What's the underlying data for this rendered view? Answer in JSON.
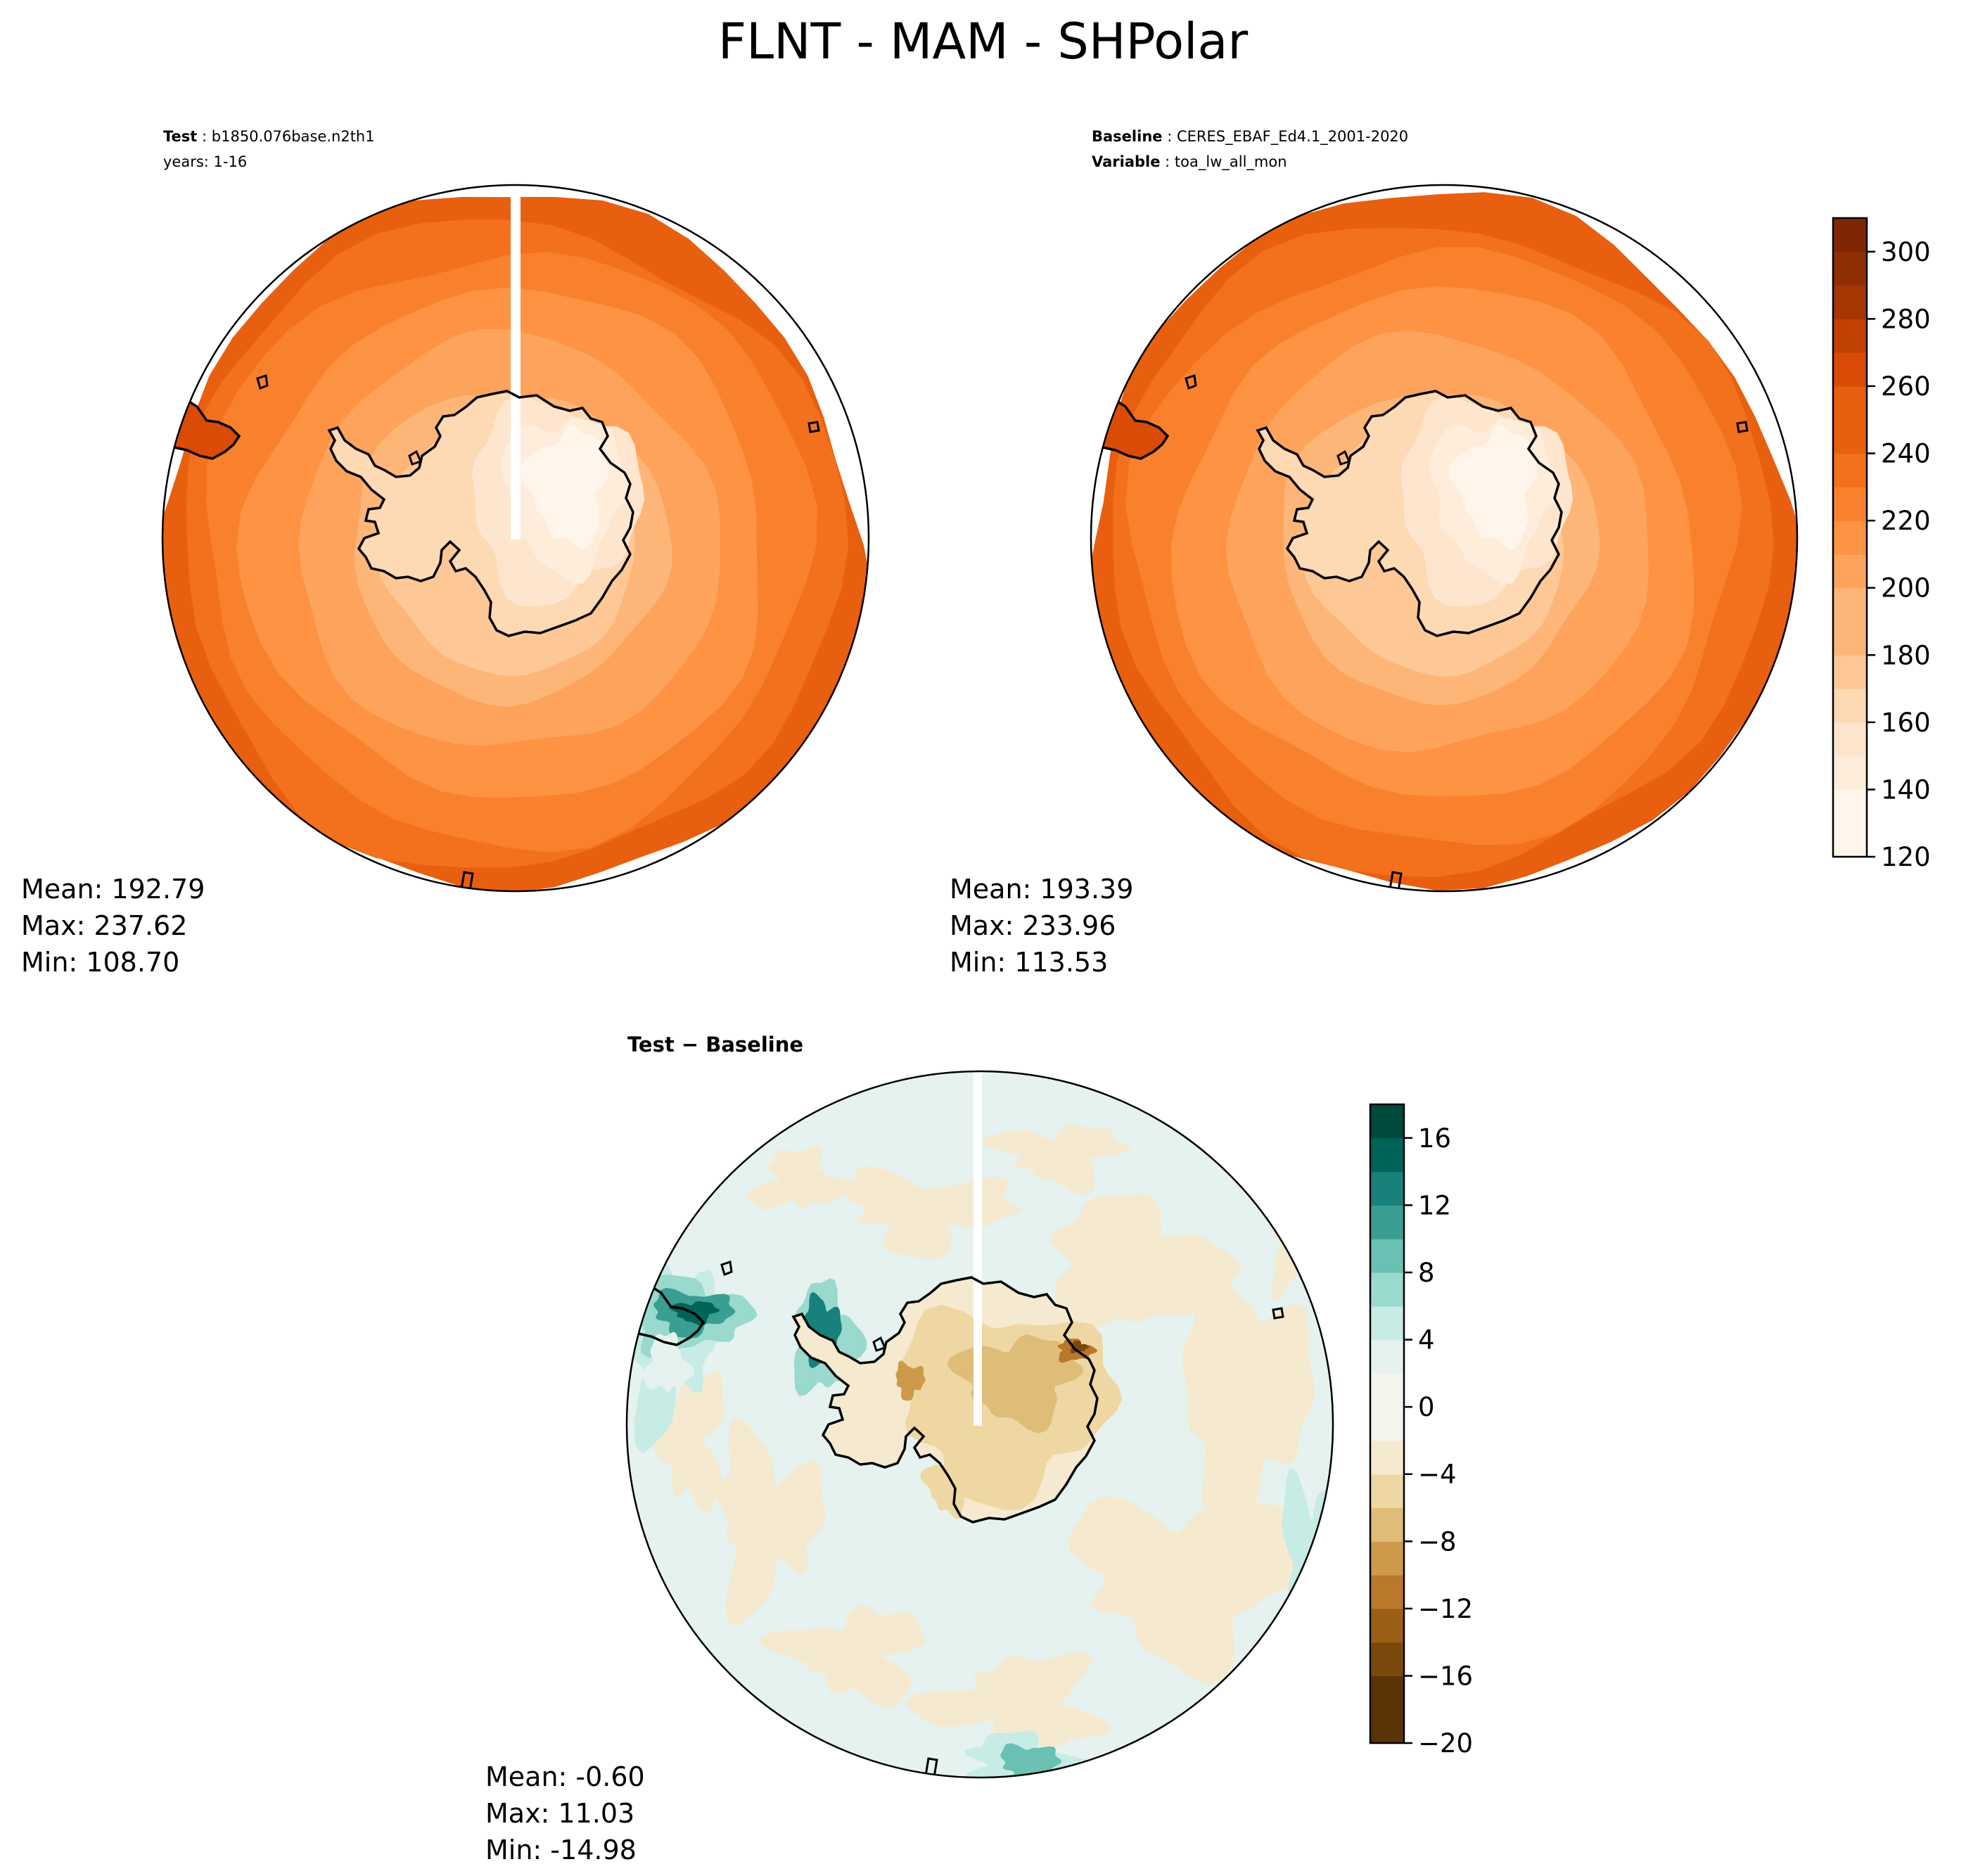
{
  "title": "FLNT - MAM - SHPolar",
  "panels": {
    "test": {
      "label_key": "Test",
      "label_value": "b1850.076base.n2th1",
      "years": "years: 1-16",
      "stats": {
        "mean": "Mean: 192.79",
        "max": "Max: 237.62",
        "min": "Min: 108.70"
      }
    },
    "baseline": {
      "label_key": "Baseline",
      "label_value": "CERES_EBAF_Ed4.1_2001-2020",
      "variable_key": "Variable",
      "variable_value": "toa_lw_all_mon",
      "stats": {
        "mean": "Mean: 193.39",
        "max": "Max: 233.96",
        "min": "Min: 113.53"
      }
    },
    "difference": {
      "label": "Test − Baseline",
      "stats": {
        "mean": "Mean: -0.60",
        "max": "Max: 11.03",
        "min": "Min: -14.98"
      }
    }
  },
  "colors": {
    "oranges": [
      "#fff5eb",
      "#feeddb",
      "#fee6ce",
      "#fdd9b4",
      "#fdc895",
      "#fdb678",
      "#fda35c",
      "#fd9343",
      "#f9812e",
      "#f3701c",
      "#e85f10",
      "#da4c05",
      "#c14102",
      "#a63603",
      "#8f2f03",
      "#7f2704"
    ],
    "brbg": [
      "#5a3407",
      "#7a4a0c",
      "#9a5f15",
      "#b9782a",
      "#cd9a4a",
      "#dfbc77",
      "#eed7a2",
      "#f5ead0",
      "#f5f4ec",
      "#e5f2ef",
      "#c7ebe5",
      "#9ad9cd",
      "#6ac1b3",
      "#3a9e92",
      "#17817a",
      "#006358",
      "#00493d"
    ]
  },
  "chart_data": [
    {
      "type": "heatmap",
      "name": "test",
      "projection": "south polar stereographic",
      "colorbar": "shared with baseline",
      "stats": {
        "mean": 192.79,
        "max": 237.62,
        "min": 108.7
      }
    },
    {
      "type": "heatmap",
      "name": "baseline",
      "projection": "south polar stereographic",
      "stats": {
        "mean": 193.39,
        "max": 233.96,
        "min": 113.53
      },
      "colorbar": {
        "range": [
          120,
          310
        ],
        "levels": [
          120,
          130,
          140,
          150,
          160,
          170,
          180,
          190,
          200,
          210,
          220,
          230,
          240,
          250,
          260,
          270,
          280,
          290,
          300,
          310
        ],
        "tick_labels": [
          "120",
          "140",
          "160",
          "180",
          "200",
          "220",
          "240",
          "260",
          "280",
          "300"
        ]
      }
    },
    {
      "type": "heatmap",
      "name": "difference",
      "projection": "south polar stereographic",
      "stats": {
        "mean": -0.6,
        "max": 11.03,
        "min": -14.98
      },
      "colorbar": {
        "range": [
          -20,
          18
        ],
        "levels": [
          -20,
          -18,
          -16,
          -14,
          -12,
          -10,
          -8,
          -6,
          -4,
          -2,
          0,
          2,
          4,
          6,
          8,
          10,
          12,
          14,
          16,
          18
        ],
        "tick_labels": [
          "−20",
          "−16",
          "−12",
          "−8",
          "−4",
          "0",
          "4",
          "8",
          "12",
          "16"
        ]
      }
    }
  ]
}
